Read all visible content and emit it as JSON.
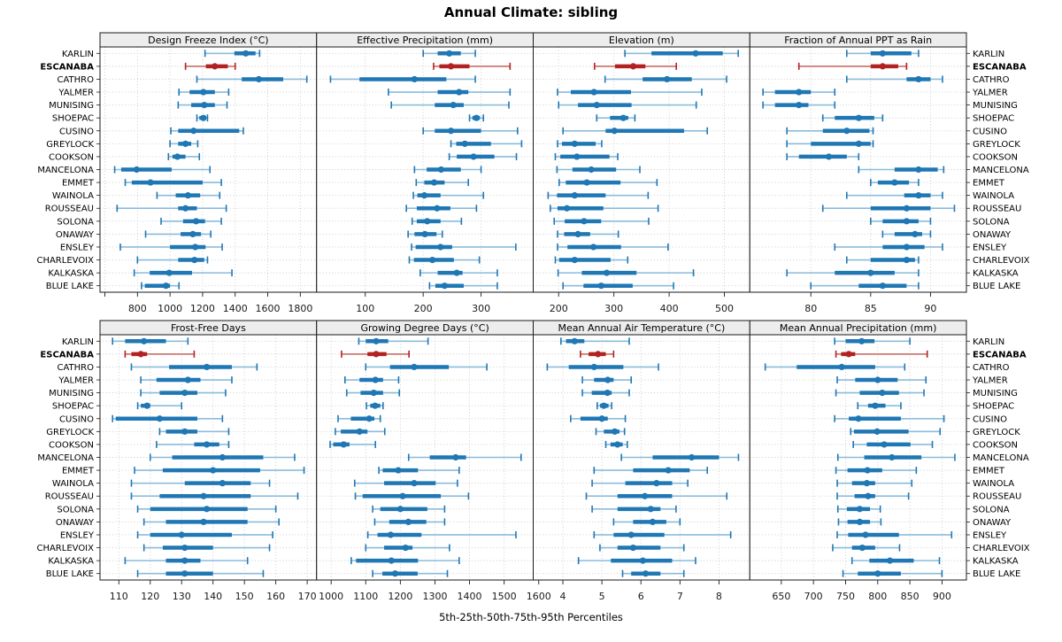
{
  "title": "Annual Climate: sibling",
  "caption": "5th-25th-50th-75th-95th Percentiles",
  "stations": [
    "KARLIN",
    "ESCANABA",
    "CATHRO",
    "YALMER",
    "MUNISING",
    "SHOEPAC",
    "CUSINO",
    "GREYLOCK",
    "COOKSON",
    "MANCELONA",
    "EMMET",
    "WAINOLA",
    "ROUSSEAU",
    "SOLONA",
    "ONAWAY",
    "ENSLEY",
    "CHARLEVOIX",
    "KALKASKA",
    "BLUE LAKE"
  ],
  "highlight_station": "ESCANABA",
  "colors": {
    "series": "#1f77b4",
    "series_light": "#8bbcdc",
    "highlight": "#b22222",
    "highlight_light": "#c4635a",
    "grid": "#c9c9c9",
    "header_bg": "#ededed",
    "panel_border": "#1a1a1a",
    "text": "#000000",
    "tick_text": "#1a1a1a"
  },
  "chart_data": [
    {
      "type": "interval",
      "title": "Design Freeze Index (°C)",
      "grid_row": 1,
      "grid_col": 1,
      "xticks": [
        800,
        1000,
        1200,
        1400,
        1600,
        1800
      ],
      "xgrid": [
        600,
        800,
        1000,
        1200,
        1400,
        1600,
        1800
      ],
      "xlim": [
        570,
        1900
      ],
      "percentiles": [
        5,
        25,
        50,
        75,
        95
      ],
      "values": [
        [
          1215,
          1395,
          1465,
          1525,
          1550
        ],
        [
          1095,
          1220,
          1275,
          1355,
          1400
        ],
        [
          1165,
          1440,
          1545,
          1695,
          1840
        ],
        [
          1055,
          1120,
          1205,
          1275,
          1360
        ],
        [
          1050,
          1130,
          1210,
          1275,
          1350
        ],
        [
          1165,
          1180,
          1205,
          1220,
          1230
        ],
        [
          1005,
          1050,
          1145,
          1425,
          1450
        ],
        [
          1000,
          1050,
          1095,
          1130,
          1170
        ],
        [
          990,
          1015,
          1045,
          1095,
          1180
        ],
        [
          660,
          700,
          795,
          1010,
          1245
        ],
        [
          725,
          765,
          880,
          1200,
          1315
        ],
        [
          920,
          1035,
          1110,
          1185,
          1305
        ],
        [
          675,
          1050,
          1095,
          1165,
          1345
        ],
        [
          945,
          1080,
          1160,
          1215,
          1315
        ],
        [
          850,
          1065,
          1140,
          1190,
          1250
        ],
        [
          695,
          1000,
          1155,
          1218,
          1320
        ],
        [
          800,
          1050,
          1150,
          1210,
          1230
        ],
        [
          780,
          875,
          995,
          1135,
          1380
        ],
        [
          825,
          845,
          975,
          1000,
          1055
        ]
      ]
    },
    {
      "type": "interval",
      "title": "Effective Precipitation (mm)",
      "grid_row": 1,
      "grid_col": 2,
      "xticks": [
        100,
        200,
        300
      ],
      "xlim": [
        16,
        390
      ],
      "percentiles": [
        5,
        25,
        50,
        75,
        95
      ],
      "values": [
        [
          200,
          225,
          245,
          265,
          290
        ],
        [
          218,
          228,
          248,
          280,
          350
        ],
        [
          40,
          90,
          185,
          240,
          290
        ],
        [
          140,
          225,
          262,
          278,
          350
        ],
        [
          145,
          220,
          252,
          270,
          348
        ],
        [
          280,
          285,
          292,
          298,
          304
        ],
        [
          200,
          220,
          248,
          300,
          363
        ],
        [
          248,
          257,
          272,
          317,
          370
        ],
        [
          245,
          258,
          287,
          323,
          361
        ],
        [
          185,
          206,
          231,
          265,
          300
        ],
        [
          188,
          202,
          219,
          237,
          278
        ],
        [
          183,
          190,
          202,
          230,
          304
        ],
        [
          171,
          189,
          224,
          247,
          292
        ],
        [
          181,
          189,
          207,
          230,
          266
        ],
        [
          174,
          185,
          203,
          223,
          233
        ],
        [
          180,
          187,
          230,
          250,
          360
        ],
        [
          176,
          184,
          216,
          253,
          297
        ],
        [
          195,
          225,
          258,
          268,
          328
        ],
        [
          211,
          221,
          237,
          270,
          328
        ]
      ]
    },
    {
      "type": "interval",
      "title": "Elevation (m)",
      "grid_row": 1,
      "grid_col": 3,
      "xticks": [
        200,
        300,
        400,
        500
      ],
      "xlim": [
        154,
        546
      ],
      "percentiles": [
        5,
        25,
        50,
        75,
        95
      ],
      "values": [
        [
          320,
          368,
          448,
          497,
          525
        ],
        [
          265,
          302,
          335,
          357,
          413
        ],
        [
          284,
          352,
          396,
          441,
          504
        ],
        [
          198,
          222,
          264,
          331,
          459
        ],
        [
          200,
          235,
          269,
          332,
          449
        ],
        [
          269,
          293,
          317,
          326,
          338
        ],
        [
          208,
          285,
          301,
          427,
          469
        ],
        [
          198,
          206,
          229,
          267,
          278
        ],
        [
          194,
          203,
          233,
          292,
          307
        ],
        [
          197,
          225,
          259,
          304,
          347
        ],
        [
          201,
          213,
          251,
          312,
          378
        ],
        [
          181,
          197,
          229,
          285,
          362
        ],
        [
          185,
          198,
          215,
          281,
          380
        ],
        [
          192,
          211,
          246,
          277,
          363
        ],
        [
          198,
          210,
          235,
          257,
          308
        ],
        [
          198,
          216,
          263,
          313,
          398
        ],
        [
          194,
          201,
          229,
          294,
          325
        ],
        [
          199,
          242,
          287,
          341,
          444
        ],
        [
          208,
          245,
          277,
          334,
          408
        ]
      ]
    },
    {
      "type": "interval",
      "title": "Fraction of Annual PPT as Rain",
      "grid_row": 1,
      "grid_col": 4,
      "xticks": [
        80,
        85,
        90
      ],
      "xlim": [
        74.9,
        93
      ],
      "percentiles": [
        5,
        25,
        50,
        75,
        95
      ],
      "values": [
        [
          83,
          85,
          86,
          88.4,
          89
        ],
        [
          79,
          85,
          86,
          87.3,
          88
        ],
        [
          83,
          88,
          89,
          90,
          91
        ],
        [
          76,
          77,
          79,
          80,
          82
        ],
        [
          76,
          77,
          79,
          79.8,
          82
        ],
        [
          81,
          82,
          84,
          85.3,
          86
        ],
        [
          78,
          81,
          83,
          84.9,
          85.2
        ],
        [
          78,
          80,
          84,
          85,
          85.2
        ],
        [
          78,
          79,
          81.5,
          83,
          84
        ],
        [
          84,
          87,
          89,
          90.6,
          91.1
        ],
        [
          85,
          85.6,
          87,
          88.2,
          89
        ],
        [
          83,
          87.8,
          89,
          90,
          91
        ],
        [
          81,
          85,
          88,
          90,
          92
        ],
        [
          85,
          86,
          88,
          89,
          90
        ],
        [
          86,
          87,
          88.7,
          89.3,
          90
        ],
        [
          82,
          86,
          88,
          89.5,
          91
        ],
        [
          83,
          85,
          88,
          88.7,
          89
        ],
        [
          78,
          82,
          85,
          87,
          89
        ],
        [
          80,
          84,
          86,
          88,
          89
        ]
      ]
    },
    {
      "type": "interval",
      "title": "Frost-Free Days",
      "grid_row": 2,
      "grid_col": 1,
      "xticks": [
        110,
        120,
        130,
        140,
        150,
        160,
        170
      ],
      "xlim": [
        104,
        173
      ],
      "percentiles": [
        5,
        25,
        50,
        75,
        95
      ],
      "values": [
        [
          108,
          112,
          118,
          125,
          132
        ],
        [
          112,
          114,
          117,
          119,
          134
        ],
        [
          114,
          126,
          138,
          146,
          154
        ],
        [
          117,
          122,
          132,
          136,
          146
        ],
        [
          117,
          123,
          131,
          135,
          144
        ],
        [
          116,
          117,
          119,
          120,
          130
        ],
        [
          108,
          109,
          123,
          135,
          143
        ],
        [
          123,
          125,
          131,
          135,
          145
        ],
        [
          122,
          134,
          138,
          142,
          145
        ],
        [
          120,
          127,
          143,
          156,
          166
        ],
        [
          115,
          124,
          140,
          155,
          169
        ],
        [
          114,
          131,
          143,
          152,
          158
        ],
        [
          114,
          123,
          137,
          152,
          167
        ],
        [
          116,
          120,
          138,
          151,
          160
        ],
        [
          118,
          125,
          137,
          151,
          161
        ],
        [
          116,
          120,
          130,
          146,
          159
        ],
        [
          118,
          124,
          131,
          140,
          158
        ],
        [
          112,
          125,
          131,
          136,
          151
        ],
        [
          116,
          125,
          131,
          140,
          156
        ]
      ]
    },
    {
      "type": "interval",
      "title": "Growing Degree Days (°C)",
      "grid_row": 2,
      "grid_col": 2,
      "xticks": [
        1000,
        1100,
        1200,
        1300,
        1400,
        1500,
        1600
      ],
      "xlim": [
        958,
        1584
      ],
      "percentiles": [
        5,
        25,
        50,
        75,
        95
      ],
      "values": [
        [
          1080,
          1100,
          1130,
          1165,
          1280
        ],
        [
          1030,
          1105,
          1130,
          1160,
          1225
        ],
        [
          1100,
          1170,
          1240,
          1340,
          1450
        ],
        [
          1040,
          1082,
          1128,
          1150,
          1195
        ],
        [
          1045,
          1085,
          1123,
          1150,
          1197
        ],
        [
          1102,
          1113,
          1127,
          1142,
          1150
        ],
        [
          1020,
          1057,
          1110,
          1125,
          1142
        ],
        [
          1012,
          1028,
          1082,
          1105,
          1155
        ],
        [
          997,
          1006,
          1036,
          1053,
          1128
        ],
        [
          1224,
          1285,
          1360,
          1390,
          1549
        ],
        [
          1138,
          1149,
          1194,
          1251,
          1370
        ],
        [
          1068,
          1153,
          1240,
          1302,
          1365
        ],
        [
          1070,
          1091,
          1207,
          1317,
          1397
        ],
        [
          1120,
          1142,
          1200,
          1278,
          1328
        ],
        [
          1126,
          1168,
          1223,
          1275,
          1328
        ],
        [
          1106,
          1134,
          1172,
          1261,
          1534
        ],
        [
          1100,
          1153,
          1215,
          1235,
          1342
        ],
        [
          1058,
          1072,
          1174,
          1251,
          1370
        ],
        [
          1120,
          1148,
          1185,
          1250,
          1336
        ]
      ]
    },
    {
      "type": "interval",
      "title": "Mean Annual Air Temperature (°C)",
      "grid_row": 2,
      "grid_col": 3,
      "xticks": [
        4,
        5,
        6,
        7,
        8
      ],
      "xlim": [
        3.24,
        8.79
      ],
      "percentiles": [
        5,
        25,
        50,
        75,
        95
      ],
      "values": [
        [
          3.95,
          4.08,
          4.3,
          4.55,
          5.7
        ],
        [
          4.45,
          4.66,
          4.9,
          5.1,
          5.3
        ],
        [
          3.6,
          4.15,
          4.8,
          5.55,
          6.45
        ],
        [
          4.5,
          4.8,
          5.15,
          5.3,
          5.75
        ],
        [
          4.5,
          4.74,
          5.14,
          5.25,
          5.7
        ],
        [
          4.88,
          4.95,
          5.05,
          5.17,
          5.25
        ],
        [
          4.2,
          4.45,
          5.0,
          5.15,
          5.6
        ],
        [
          4.85,
          5.05,
          5.33,
          5.45,
          5.58
        ],
        [
          5.1,
          5.22,
          5.4,
          5.53,
          5.65
        ],
        [
          5.5,
          6.3,
          7.3,
          8.0,
          8.5
        ],
        [
          4.8,
          5.8,
          6.7,
          7.25,
          7.7
        ],
        [
          4.75,
          5.6,
          6.4,
          6.8,
          7.2
        ],
        [
          4.6,
          5.4,
          6.1,
          6.8,
          8.2
        ],
        [
          4.75,
          5.4,
          6.25,
          6.5,
          6.9
        ],
        [
          5.3,
          5.8,
          6.3,
          6.65,
          7.0
        ],
        [
          4.8,
          5.3,
          5.75,
          6.6,
          8.3
        ],
        [
          4.95,
          5.4,
          5.8,
          6.5,
          7.1
        ],
        [
          4.4,
          5.23,
          6.05,
          6.8,
          7.4
        ],
        [
          5.53,
          5.75,
          6.12,
          6.5,
          7.1
        ]
      ]
    },
    {
      "type": "interval",
      "title": "Mean Annual Precipitation (mm)",
      "grid_row": 2,
      "grid_col": 4,
      "xticks": [
        650,
        700,
        750,
        800,
        850,
        900
      ],
      "xlim": [
        601,
        938
      ],
      "percentiles": [
        5,
        25,
        50,
        75,
        95
      ],
      "values": [
        [
          733,
          750,
          775,
          795,
          850
        ],
        [
          735,
          743,
          755,
          765,
          877
        ],
        [
          625,
          674,
          744,
          796,
          842
        ],
        [
          737,
          765,
          800,
          831,
          875
        ],
        [
          735,
          772,
          807,
          833,
          872
        ],
        [
          769,
          785,
          796,
          812,
          836
        ],
        [
          733,
          755,
          770,
          836,
          903
        ],
        [
          758,
          763,
          799,
          848,
          897
        ],
        [
          762,
          783,
          810,
          851,
          885
        ],
        [
          738,
          779,
          822,
          868,
          920
        ],
        [
          735,
          753,
          784,
          807,
          860
        ],
        [
          737,
          760,
          783,
          796,
          853
        ],
        [
          737,
          764,
          785,
          796,
          848
        ],
        [
          738,
          752,
          772,
          788,
          804
        ],
        [
          739,
          753,
          772,
          788,
          805
        ],
        [
          737,
          754,
          781,
          833,
          915
        ],
        [
          730,
          760,
          776,
          796,
          834
        ],
        [
          760,
          787,
          819,
          856,
          896
        ],
        [
          746,
          769,
          800,
          836,
          900
        ]
      ]
    }
  ]
}
